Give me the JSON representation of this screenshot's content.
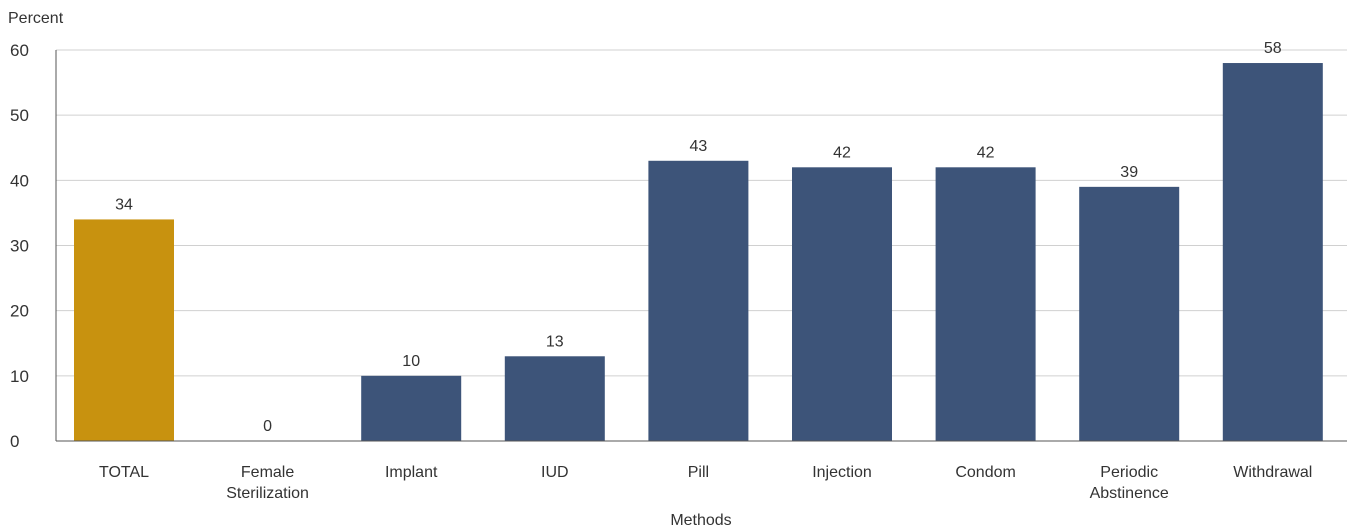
{
  "chart_data": {
    "type": "bar",
    "ylabel": "Percent",
    "xlabel": "Methods",
    "ylim": [
      0,
      60
    ],
    "yticks": [
      0,
      10,
      20,
      30,
      40,
      50,
      60
    ],
    "grid": true,
    "categories": [
      [
        "TOTAL"
      ],
      [
        "Female",
        "Sterilization"
      ],
      [
        "Implant"
      ],
      [
        "IUD"
      ],
      [
        "Pill"
      ],
      [
        "Injection"
      ],
      [
        "Condom"
      ],
      [
        "Periodic",
        "Abstinence"
      ],
      [
        "Withdrawal"
      ]
    ],
    "values": [
      34,
      0,
      10,
      13,
      43,
      42,
      42,
      39,
      58
    ],
    "data_labels": [
      "34",
      "0",
      "10",
      "13",
      "43",
      "42",
      "42",
      "39",
      "58"
    ],
    "colors": {
      "total": "#c8920f",
      "method": "#3d5479"
    },
    "highlight_index": 0
  }
}
